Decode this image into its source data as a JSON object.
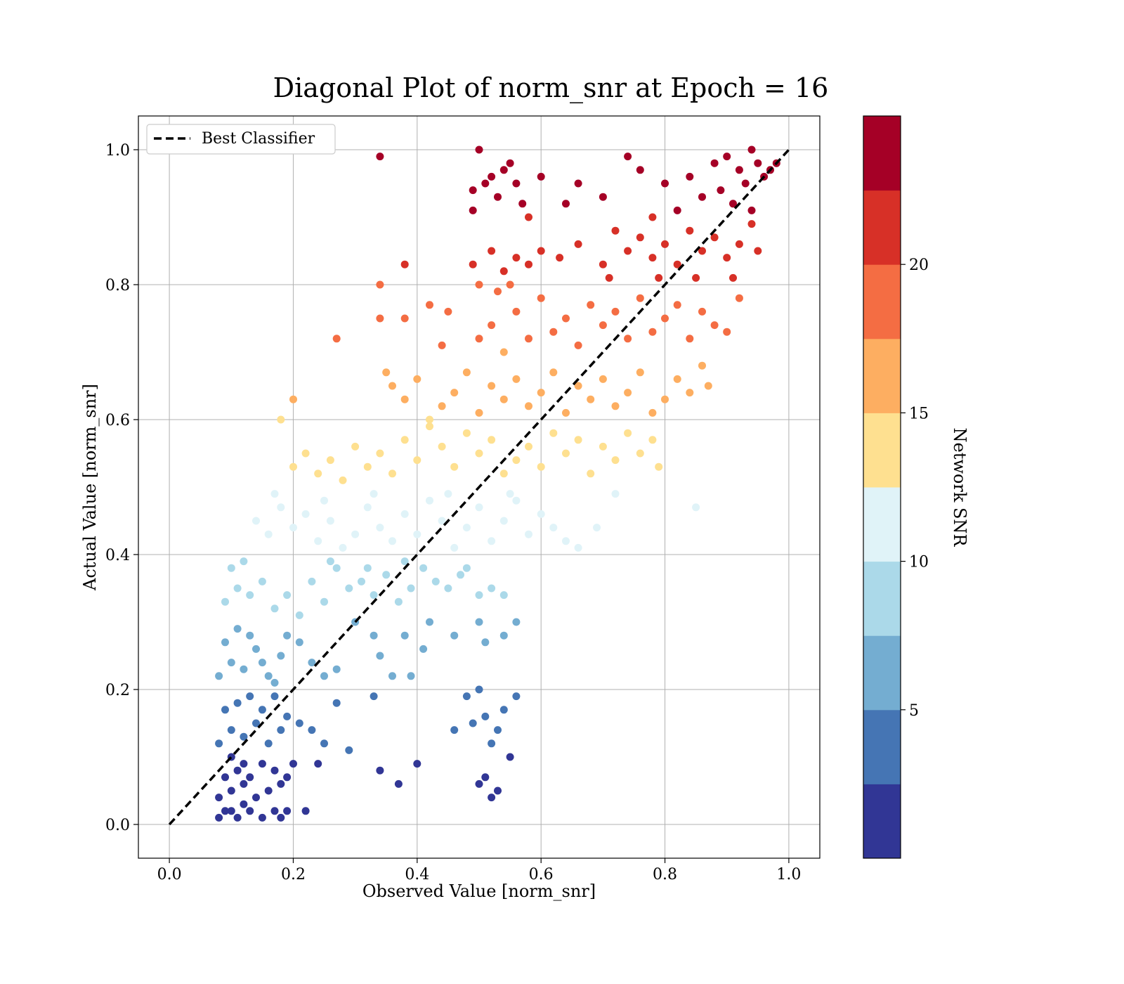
{
  "chart_data": {
    "type": "scatter",
    "title": "Diagonal Plot of norm_snr at Epoch = 16",
    "xlabel": "Observed Value [norm_snr]",
    "ylabel": "Actual Value [norm_snr]",
    "xlim": [
      -0.05,
      1.05
    ],
    "ylim": [
      -0.05,
      1.05
    ],
    "x_ticks": [
      0.0,
      0.2,
      0.4,
      0.6,
      0.8,
      1.0
    ],
    "x_tick_labels": [
      "0.0",
      "0.2",
      "0.4",
      "0.6",
      "0.8",
      "1.0"
    ],
    "y_ticks": [
      0.0,
      0.2,
      0.4,
      0.6,
      0.8,
      1.0
    ],
    "y_tick_labels": [
      "0.0",
      "0.2",
      "0.4",
      "0.6",
      "0.8",
      "1.0"
    ],
    "grid": true,
    "legend": {
      "placement": "upper-left",
      "entries": [
        "Best Classifier"
      ]
    },
    "reference_line": {
      "label": "Best Classifier",
      "x": [
        0.0,
        1.0
      ],
      "y": [
        0.0,
        1.0
      ],
      "style": "dashed",
      "color": "#000000"
    },
    "colorbar": {
      "label": "Network SNR",
      "range": [
        0,
        25
      ],
      "ticks": [
        5,
        10,
        15,
        20
      ],
      "tick_labels": [
        "5",
        "10",
        "15",
        "20"
      ],
      "colors": [
        "#313695",
        "#4575b4",
        "#74add1",
        "#abd9e9",
        "#e0f3f8",
        "#fee090",
        "#fdae61",
        "#f46d43",
        "#d73027",
        "#a50026"
      ]
    },
    "points": [
      [
        0.08,
        0.01
      ],
      [
        0.09,
        0.02
      ],
      [
        0.1,
        0.02
      ],
      [
        0.11,
        0.01
      ],
      [
        0.12,
        0.03
      ],
      [
        0.13,
        0.02
      ],
      [
        0.15,
        0.01
      ],
      [
        0.17,
        0.02
      ],
      [
        0.18,
        0.01
      ],
      [
        0.19,
        0.02
      ],
      [
        0.08,
        0.04
      ],
      [
        0.1,
        0.05
      ],
      [
        0.12,
        0.06
      ],
      [
        0.14,
        0.04
      ],
      [
        0.16,
        0.05
      ],
      [
        0.18,
        0.06
      ],
      [
        0.09,
        0.07
      ],
      [
        0.11,
        0.08
      ],
      [
        0.13,
        0.07
      ],
      [
        0.15,
        0.09
      ],
      [
        0.17,
        0.08
      ],
      [
        0.19,
        0.07
      ],
      [
        0.1,
        0.1
      ],
      [
        0.12,
        0.09
      ],
      [
        0.2,
        0.09
      ],
      [
        0.22,
        0.02
      ],
      [
        0.24,
        0.09
      ],
      [
        0.34,
        0.08
      ],
      [
        0.37,
        0.06
      ],
      [
        0.4,
        0.09
      ],
      [
        0.5,
        0.06
      ],
      [
        0.51,
        0.07
      ],
      [
        0.52,
        0.04
      ],
      [
        0.53,
        0.05
      ],
      [
        0.55,
        0.1
      ],
      [
        0.08,
        0.12
      ],
      [
        0.1,
        0.14
      ],
      [
        0.12,
        0.13
      ],
      [
        0.14,
        0.15
      ],
      [
        0.16,
        0.12
      ],
      [
        0.18,
        0.14
      ],
      [
        0.09,
        0.17
      ],
      [
        0.11,
        0.18
      ],
      [
        0.13,
        0.19
      ],
      [
        0.15,
        0.17
      ],
      [
        0.17,
        0.19
      ],
      [
        0.19,
        0.16
      ],
      [
        0.21,
        0.15
      ],
      [
        0.23,
        0.14
      ],
      [
        0.25,
        0.12
      ],
      [
        0.27,
        0.18
      ],
      [
        0.29,
        0.11
      ],
      [
        0.33,
        0.19
      ],
      [
        0.46,
        0.14
      ],
      [
        0.48,
        0.19
      ],
      [
        0.49,
        0.15
      ],
      [
        0.5,
        0.2
      ],
      [
        0.51,
        0.16
      ],
      [
        0.52,
        0.12
      ],
      [
        0.53,
        0.14
      ],
      [
        0.54,
        0.17
      ],
      [
        0.56,
        0.19
      ],
      [
        0.08,
        0.22
      ],
      [
        0.1,
        0.24
      ],
      [
        0.12,
        0.23
      ],
      [
        0.14,
        0.26
      ],
      [
        0.16,
        0.22
      ],
      [
        0.18,
        0.25
      ],
      [
        0.09,
        0.27
      ],
      [
        0.11,
        0.29
      ],
      [
        0.13,
        0.28
      ],
      [
        0.15,
        0.24
      ],
      [
        0.17,
        0.21
      ],
      [
        0.19,
        0.28
      ],
      [
        0.21,
        0.27
      ],
      [
        0.23,
        0.24
      ],
      [
        0.25,
        0.22
      ],
      [
        0.27,
        0.23
      ],
      [
        0.3,
        0.3
      ],
      [
        0.33,
        0.28
      ],
      [
        0.34,
        0.25
      ],
      [
        0.36,
        0.22
      ],
      [
        0.38,
        0.28
      ],
      [
        0.39,
        0.22
      ],
      [
        0.41,
        0.26
      ],
      [
        0.42,
        0.3
      ],
      [
        0.46,
        0.28
      ],
      [
        0.5,
        0.3
      ],
      [
        0.51,
        0.27
      ],
      [
        0.54,
        0.28
      ],
      [
        0.56,
        0.3
      ],
      [
        0.09,
        0.33
      ],
      [
        0.11,
        0.35
      ],
      [
        0.13,
        0.34
      ],
      [
        0.15,
        0.36
      ],
      [
        0.17,
        0.32
      ],
      [
        0.19,
        0.34
      ],
      [
        0.21,
        0.31
      ],
      [
        0.23,
        0.36
      ],
      [
        0.25,
        0.33
      ],
      [
        0.27,
        0.38
      ],
      [
        0.29,
        0.35
      ],
      [
        0.31,
        0.36
      ],
      [
        0.33,
        0.34
      ],
      [
        0.35,
        0.37
      ],
      [
        0.37,
        0.33
      ],
      [
        0.39,
        0.35
      ],
      [
        0.41,
        0.38
      ],
      [
        0.43,
        0.36
      ],
      [
        0.45,
        0.35
      ],
      [
        0.47,
        0.37
      ],
      [
        0.5,
        0.34
      ],
      [
        0.52,
        0.35
      ],
      [
        0.54,
        0.34
      ],
      [
        0.1,
        0.38
      ],
      [
        0.12,
        0.39
      ],
      [
        0.26,
        0.39
      ],
      [
        0.32,
        0.38
      ],
      [
        0.38,
        0.39
      ],
      [
        0.48,
        0.38
      ],
      [
        0.14,
        0.45
      ],
      [
        0.16,
        0.43
      ],
      [
        0.18,
        0.47
      ],
      [
        0.2,
        0.44
      ],
      [
        0.22,
        0.46
      ],
      [
        0.24,
        0.42
      ],
      [
        0.26,
        0.45
      ],
      [
        0.28,
        0.41
      ],
      [
        0.3,
        0.43
      ],
      [
        0.32,
        0.47
      ],
      [
        0.34,
        0.44
      ],
      [
        0.36,
        0.42
      ],
      [
        0.38,
        0.46
      ],
      [
        0.4,
        0.43
      ],
      [
        0.42,
        0.48
      ],
      [
        0.44,
        0.45
      ],
      [
        0.46,
        0.41
      ],
      [
        0.48,
        0.44
      ],
      [
        0.5,
        0.47
      ],
      [
        0.52,
        0.42
      ],
      [
        0.54,
        0.45
      ],
      [
        0.56,
        0.48
      ],
      [
        0.58,
        0.43
      ],
      [
        0.6,
        0.46
      ],
      [
        0.62,
        0.44
      ],
      [
        0.64,
        0.42
      ],
      [
        0.66,
        0.41
      ],
      [
        0.69,
        0.44
      ],
      [
        0.72,
        0.49
      ],
      [
        0.85,
        0.47
      ],
      [
        0.17,
        0.49
      ],
      [
        0.25,
        0.48
      ],
      [
        0.33,
        0.49
      ],
      [
        0.45,
        0.49
      ],
      [
        0.55,
        0.49
      ],
      [
        0.18,
        0.6
      ],
      [
        0.2,
        0.53
      ],
      [
        0.22,
        0.55
      ],
      [
        0.24,
        0.52
      ],
      [
        0.26,
        0.54
      ],
      [
        0.28,
        0.51
      ],
      [
        0.3,
        0.56
      ],
      [
        0.32,
        0.53
      ],
      [
        0.34,
        0.55
      ],
      [
        0.36,
        0.52
      ],
      [
        0.38,
        0.57
      ],
      [
        0.4,
        0.54
      ],
      [
        0.42,
        0.59
      ],
      [
        0.44,
        0.56
      ],
      [
        0.46,
        0.53
      ],
      [
        0.48,
        0.58
      ],
      [
        0.5,
        0.55
      ],
      [
        0.52,
        0.57
      ],
      [
        0.54,
        0.52
      ],
      [
        0.56,
        0.54
      ],
      [
        0.58,
        0.56
      ],
      [
        0.6,
        0.53
      ],
      [
        0.62,
        0.58
      ],
      [
        0.64,
        0.55
      ],
      [
        0.66,
        0.57
      ],
      [
        0.68,
        0.52
      ],
      [
        0.7,
        0.56
      ],
      [
        0.72,
        0.54
      ],
      [
        0.74,
        0.58
      ],
      [
        0.76,
        0.55
      ],
      [
        0.78,
        0.57
      ],
      [
        0.79,
        0.53
      ],
      [
        0.2,
        0.63
      ],
      [
        0.35,
        0.67
      ],
      [
        0.36,
        0.65
      ],
      [
        0.38,
        0.63
      ],
      [
        0.4,
        0.66
      ],
      [
        0.42,
        0.6
      ],
      [
        0.44,
        0.62
      ],
      [
        0.46,
        0.64
      ],
      [
        0.48,
        0.67
      ],
      [
        0.5,
        0.61
      ],
      [
        0.52,
        0.65
      ],
      [
        0.54,
        0.63
      ],
      [
        0.56,
        0.66
      ],
      [
        0.58,
        0.62
      ],
      [
        0.6,
        0.64
      ],
      [
        0.62,
        0.67
      ],
      [
        0.64,
        0.61
      ],
      [
        0.66,
        0.65
      ],
      [
        0.68,
        0.63
      ],
      [
        0.7,
        0.66
      ],
      [
        0.72,
        0.62
      ],
      [
        0.74,
        0.64
      ],
      [
        0.76,
        0.67
      ],
      [
        0.78,
        0.61
      ],
      [
        0.8,
        0.63
      ],
      [
        0.82,
        0.66
      ],
      [
        0.84,
        0.64
      ],
      [
        0.86,
        0.68
      ],
      [
        0.87,
        0.65
      ],
      [
        0.27,
        0.72
      ],
      [
        0.34,
        0.75
      ],
      [
        0.38,
        0.75
      ],
      [
        0.44,
        0.71
      ],
      [
        0.5,
        0.72
      ],
      [
        0.52,
        0.74
      ],
      [
        0.54,
        0.7
      ],
      [
        0.56,
        0.76
      ],
      [
        0.58,
        0.72
      ],
      [
        0.6,
        0.78
      ],
      [
        0.62,
        0.73
      ],
      [
        0.64,
        0.75
      ],
      [
        0.66,
        0.71
      ],
      [
        0.68,
        0.77
      ],
      [
        0.7,
        0.74
      ],
      [
        0.72,
        0.76
      ],
      [
        0.74,
        0.72
      ],
      [
        0.76,
        0.78
      ],
      [
        0.78,
        0.73
      ],
      [
        0.8,
        0.75
      ],
      [
        0.82,
        0.77
      ],
      [
        0.84,
        0.72
      ],
      [
        0.86,
        0.76
      ],
      [
        0.88,
        0.74
      ],
      [
        0.9,
        0.73
      ],
      [
        0.92,
        0.78
      ],
      [
        0.34,
        0.8
      ],
      [
        0.42,
        0.77
      ],
      [
        0.45,
        0.76
      ],
      [
        0.5,
        0.8
      ],
      [
        0.53,
        0.79
      ],
      [
        0.55,
        0.8
      ],
      [
        0.38,
        0.83
      ],
      [
        0.49,
        0.83
      ],
      [
        0.52,
        0.85
      ],
      [
        0.54,
        0.82
      ],
      [
        0.56,
        0.84
      ],
      [
        0.58,
        0.83
      ],
      [
        0.6,
        0.85
      ],
      [
        0.63,
        0.84
      ],
      [
        0.66,
        0.86
      ],
      [
        0.7,
        0.83
      ],
      [
        0.72,
        0.88
      ],
      [
        0.74,
        0.85
      ],
      [
        0.76,
        0.87
      ],
      [
        0.78,
        0.84
      ],
      [
        0.8,
        0.86
      ],
      [
        0.82,
        0.83
      ],
      [
        0.84,
        0.88
      ],
      [
        0.86,
        0.85
      ],
      [
        0.88,
        0.87
      ],
      [
        0.9,
        0.84
      ],
      [
        0.92,
        0.86
      ],
      [
        0.94,
        0.89
      ],
      [
        0.95,
        0.85
      ],
      [
        0.71,
        0.81
      ],
      [
        0.79,
        0.81
      ],
      [
        0.85,
        0.81
      ],
      [
        0.91,
        0.81
      ],
      [
        0.34,
        0.99
      ],
      [
        0.49,
        0.94
      ],
      [
        0.49,
        0.91
      ],
      [
        0.5,
        1.0
      ],
      [
        0.51,
        0.95
      ],
      [
        0.52,
        0.96
      ],
      [
        0.53,
        0.93
      ],
      [
        0.54,
        0.97
      ],
      [
        0.55,
        0.98
      ],
      [
        0.56,
        0.95
      ],
      [
        0.57,
        0.92
      ],
      [
        0.58,
        0.9
      ],
      [
        0.6,
        0.96
      ],
      [
        0.64,
        0.92
      ],
      [
        0.66,
        0.95
      ],
      [
        0.7,
        0.93
      ],
      [
        0.74,
        0.99
      ],
      [
        0.76,
        0.97
      ],
      [
        0.78,
        0.9
      ],
      [
        0.8,
        0.95
      ],
      [
        0.82,
        0.91
      ],
      [
        0.84,
        0.96
      ],
      [
        0.86,
        0.93
      ],
      [
        0.88,
        0.98
      ],
      [
        0.89,
        0.94
      ],
      [
        0.9,
        0.99
      ],
      [
        0.91,
        0.92
      ],
      [
        0.92,
        0.97
      ],
      [
        0.93,
        0.95
      ],
      [
        0.94,
        1.0
      ],
      [
        0.95,
        0.98
      ],
      [
        0.96,
        0.96
      ],
      [
        0.97,
        0.97
      ],
      [
        0.98,
        0.98
      ],
      [
        0.94,
        0.91
      ]
    ]
  }
}
